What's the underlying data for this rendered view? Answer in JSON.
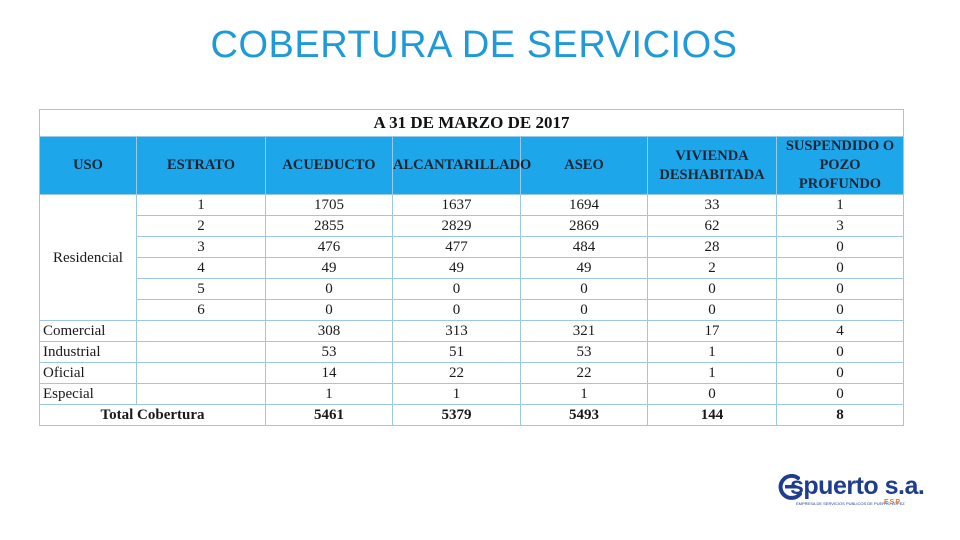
{
  "title": "COBERTURA DE SERVICIOS",
  "table": {
    "caption": "A 31 DE MARZO DE 2017",
    "headers": [
      "USO",
      "ESTRATO",
      "ACUEDUCTO",
      "ALCANTARILLADO",
      "ASEO",
      "VIVIENDA DESHABITADA",
      "SUSPENDIDO O POZO PROFUNDO"
    ],
    "residencial_label": "Residencial",
    "residencial_rows": [
      {
        "estrato": "1",
        "acueducto": "1705",
        "alcantarillado": "1637",
        "aseo": "1694",
        "vivienda": "33",
        "suspendido": "1"
      },
      {
        "estrato": "2",
        "acueducto": "2855",
        "alcantarillado": "2829",
        "aseo": "2869",
        "vivienda": "62",
        "suspendido": "3"
      },
      {
        "estrato": "3",
        "acueducto": "476",
        "alcantarillado": "477",
        "aseo": "484",
        "vivienda": "28",
        "suspendido": "0"
      },
      {
        "estrato": "4",
        "acueducto": "49",
        "alcantarillado": "49",
        "aseo": "49",
        "vivienda": "2",
        "suspendido": "0"
      },
      {
        "estrato": "5",
        "acueducto": "0",
        "alcantarillado": "0",
        "aseo": "0",
        "vivienda": "0",
        "suspendido": "0"
      },
      {
        "estrato": "6",
        "acueducto": "0",
        "alcantarillado": "0",
        "aseo": "0",
        "vivienda": "0",
        "suspendido": "0"
      }
    ],
    "other_rows": [
      {
        "uso": "Comercial",
        "acueducto": "308",
        "alcantarillado": "313",
        "aseo": "321",
        "vivienda": "17",
        "suspendido": "4"
      },
      {
        "uso": "Industrial",
        "acueducto": "53",
        "alcantarillado": "51",
        "aseo": "53",
        "vivienda": "1",
        "suspendido": "0"
      },
      {
        "uso": "Oficial",
        "acueducto": "14",
        "alcantarillado": "22",
        "aseo": "22",
        "vivienda": "1",
        "suspendido": "0"
      },
      {
        "uso": "Especial",
        "acueducto": "1",
        "alcantarillado": "1",
        "aseo": "1",
        "vivienda": "0",
        "suspendido": "0"
      }
    ],
    "total": {
      "label": "Total Cobertura",
      "acueducto": "5461",
      "alcantarillado": "5379",
      "aseo": "5493",
      "vivienda": "144",
      "suspendido": "8"
    }
  },
  "logo": {
    "name": "spuerto s.a.",
    "subtitle": "EMPRESA DE SERVICIOS PUBLICOS DE PUERTO LOPEZ",
    "esp": "ESP"
  },
  "colors": {
    "title": "#1e9ad8",
    "header_bg": "#1ea6ea",
    "border": "#9bc8e6",
    "logo": "#1f3d8f",
    "logo_accent": "#e07a1f"
  }
}
